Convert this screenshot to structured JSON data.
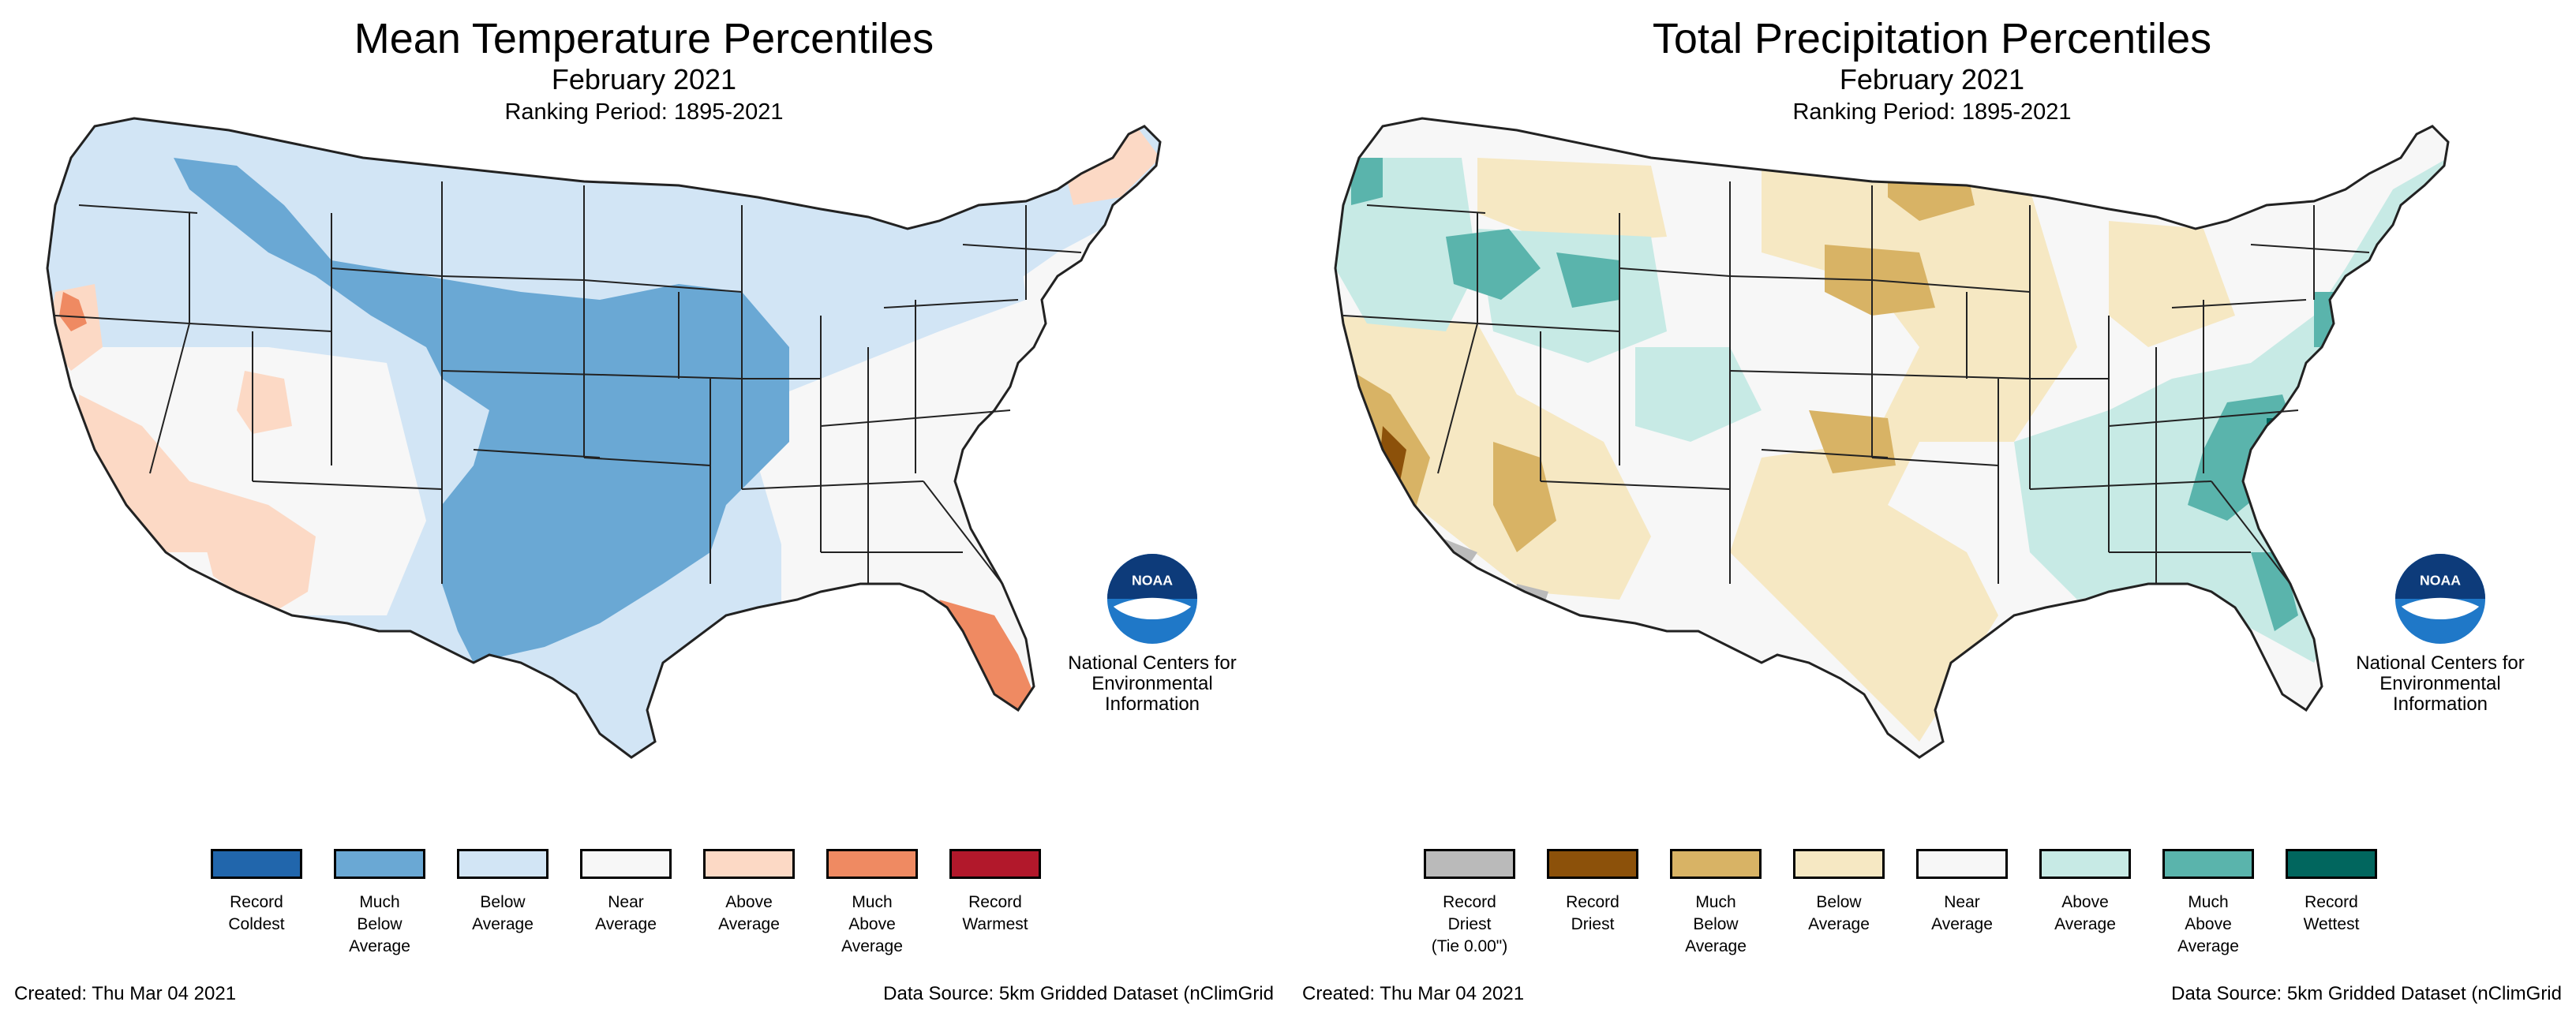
{
  "temperature_panel": {
    "title": "Mean Temperature Percentiles",
    "period": "February 2021",
    "ranking": "Ranking Period: 1895-2021",
    "legend": [
      {
        "label": "Record\nColdest",
        "color": "#2166ac"
      },
      {
        "label": "Much\nBelow\nAverage",
        "color": "#6aa8d4"
      },
      {
        "label": "Below\nAverage",
        "color": "#d2e5f5"
      },
      {
        "label": "Near\nAverage",
        "color": "#f7f7f7"
      },
      {
        "label": "Above\nAverage",
        "color": "#fcd9c5"
      },
      {
        "label": "Much\nAbove\nAverage",
        "color": "#ef8a62"
      },
      {
        "label": "Record\nWarmest",
        "color": "#b2182b"
      }
    ],
    "logo_text": "NOAA",
    "org": "National Centers for Environmental Information",
    "created": "Created: Thu Mar 04 2021",
    "source": "Data Source: 5km Gridded Dataset (nClimGrid"
  },
  "precipitation_panel": {
    "title": "Total Precipitation Percentiles",
    "period": "February 2021",
    "ranking": "Ranking Period: 1895-2021",
    "legend": [
      {
        "label": "Record\nDriest\n(Tie 0.00\")",
        "color": "#bababa"
      },
      {
        "label": "Record\nDriest",
        "color": "#8c510a"
      },
      {
        "label": "Much\nBelow\nAverage",
        "color": "#d8b365"
      },
      {
        "label": "Below\nAverage",
        "color": "#f6e8c3"
      },
      {
        "label": "Near\nAverage",
        "color": "#f7f7f7"
      },
      {
        "label": "Above\nAverage",
        "color": "#c7eae5"
      },
      {
        "label": "Much\nAbove\nAverage",
        "color": "#5ab4ac"
      },
      {
        "label": "Record\nWettest",
        "color": "#01665e"
      }
    ],
    "logo_text": "NOAA",
    "org": "National Centers for Environmental Information",
    "created": "Created: Thu Mar 04 2021",
    "source": "Data Source: 5km Gridded Dataset (nClimGrid"
  }
}
